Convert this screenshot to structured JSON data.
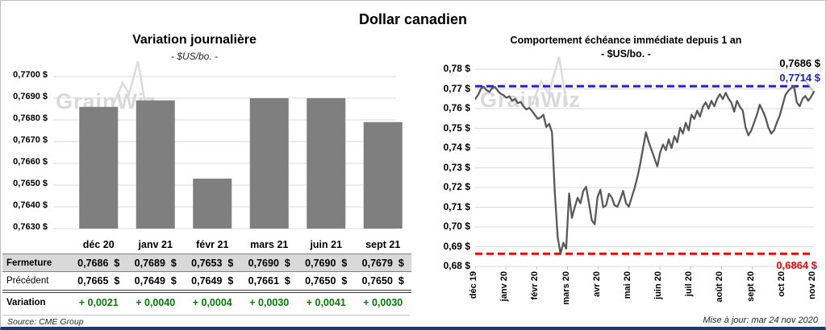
{
  "page": {
    "title": "Dollar canadien",
    "source": "Source: CME Group",
    "updated": "Mise à jour: mar 24 nov 2020",
    "watermark": "GrainWiz"
  },
  "table": {
    "columns": [
      "déc 20",
      "janv 21",
      "févr 21",
      "mars 21",
      "juin 21",
      "sept 21"
    ],
    "rows": [
      {
        "label": "Fermeture",
        "values": [
          "0,7686  $",
          "0,7689  $",
          "0,7653  $",
          "0,7690  $",
          "0,7690  $",
          "0,7679  $"
        ]
      },
      {
        "label": "Précédent",
        "values": [
          "0,7665  $",
          "0,7649  $",
          "0,7649  $",
          "0,7661  $",
          "0,7650  $",
          "0,7650  $"
        ]
      },
      {
        "label": "Variation",
        "values": [
          "+ 0,0021",
          "+ 0,0040",
          "+ 0,0004",
          "+ 0,0030",
          "+ 0,0041",
          "+ 0,0030"
        ]
      }
    ]
  },
  "chart_data": [
    {
      "id": "daily-variation",
      "type": "bar",
      "title": "Variation  journalière",
      "subtitle": "- $US/bo. -",
      "categories": [
        "déc 20",
        "janv 21",
        "févr 21",
        "mars 21",
        "juin 21",
        "sept 21"
      ],
      "values": [
        0.7686,
        0.7689,
        0.7653,
        0.769,
        0.769,
        0.7679
      ],
      "ylim": [
        0.763,
        0.77
      ],
      "ytick_labels": [
        "0,7700 $",
        "0,7690 $",
        "0,7680 $",
        "0,7670 $",
        "0,7660 $",
        "0,7650 $",
        "0,7640 $",
        "0,7630 $"
      ],
      "bar_color": "#7f7f7f",
      "grid": true,
      "legend": "none"
    },
    {
      "id": "year-behaviour",
      "type": "line",
      "title": "Comportement échéance immédiate depuis 1 an",
      "subtitle": "- $US/bo. -",
      "x_labels": [
        "déc 19",
        "janv 20",
        "févr 20",
        "mars 20",
        "avr 20",
        "mai 20",
        "juin 20",
        "juil 20",
        "août 20",
        "sept 20",
        "oct 20",
        "nov 20"
      ],
      "ylim": [
        0.68,
        0.78
      ],
      "ytick_labels": [
        "0,78 $",
        "0,77 $",
        "0,76 $",
        "0,75 $",
        "0,74 $",
        "0,73 $",
        "0,72 $",
        "0,71 $",
        "0,70 $",
        "0,69 $",
        "0,68 $"
      ],
      "line_color": "#595959",
      "grid": true,
      "legend": "none",
      "high_line": {
        "value": 0.7714,
        "label": "0,7714 $",
        "color": "#2121cc"
      },
      "low_line": {
        "value": 0.6864,
        "label": "0,6864 $",
        "color": "#fe0000"
      },
      "last_point": {
        "value": 0.7686,
        "label": "0,7686 $",
        "color": "#000000"
      },
      "values": [
        0.7648,
        0.7668,
        0.77,
        0.7712,
        0.7694,
        0.7685,
        0.7704,
        0.771,
        0.769,
        0.7675,
        0.7668,
        0.7655,
        0.7663,
        0.764,
        0.765,
        0.7628,
        0.7634,
        0.7612,
        0.7596,
        0.7604,
        0.7588,
        0.7568,
        0.7548,
        0.7556,
        0.7569,
        0.7507,
        0.7523,
        0.748,
        0.7175,
        0.6947,
        0.6864,
        0.692,
        0.689,
        0.717,
        0.7046,
        0.71,
        0.7148,
        0.712,
        0.7183,
        0.7204,
        0.712,
        0.7034,
        0.7014,
        0.7152,
        0.7189,
        0.71,
        0.711,
        0.7168,
        0.715,
        0.711,
        0.7103,
        0.714,
        0.7183,
        0.712,
        0.7103,
        0.715,
        0.7195,
        0.7253,
        0.732,
        0.74,
        0.748,
        0.743,
        0.739,
        0.7348,
        0.7307,
        0.7378,
        0.7418,
        0.739,
        0.7444,
        0.74,
        0.746,
        0.743,
        0.7503,
        0.7474,
        0.7528,
        0.749,
        0.7569,
        0.7548,
        0.759,
        0.756,
        0.761,
        0.7632,
        0.76,
        0.764,
        0.7612,
        0.765,
        0.7673,
        0.7648,
        0.768,
        0.7652,
        0.7631,
        0.7585,
        0.764,
        0.761,
        0.759,
        0.7505,
        0.7465,
        0.749,
        0.753,
        0.757,
        0.762,
        0.759,
        0.7555,
        0.7505,
        0.7474,
        0.749,
        0.753,
        0.7564,
        0.7618,
        0.767,
        0.769,
        0.7705,
        0.7714,
        0.7632,
        0.7612,
        0.765,
        0.7664,
        0.764,
        0.766,
        0.7686
      ]
    }
  ]
}
